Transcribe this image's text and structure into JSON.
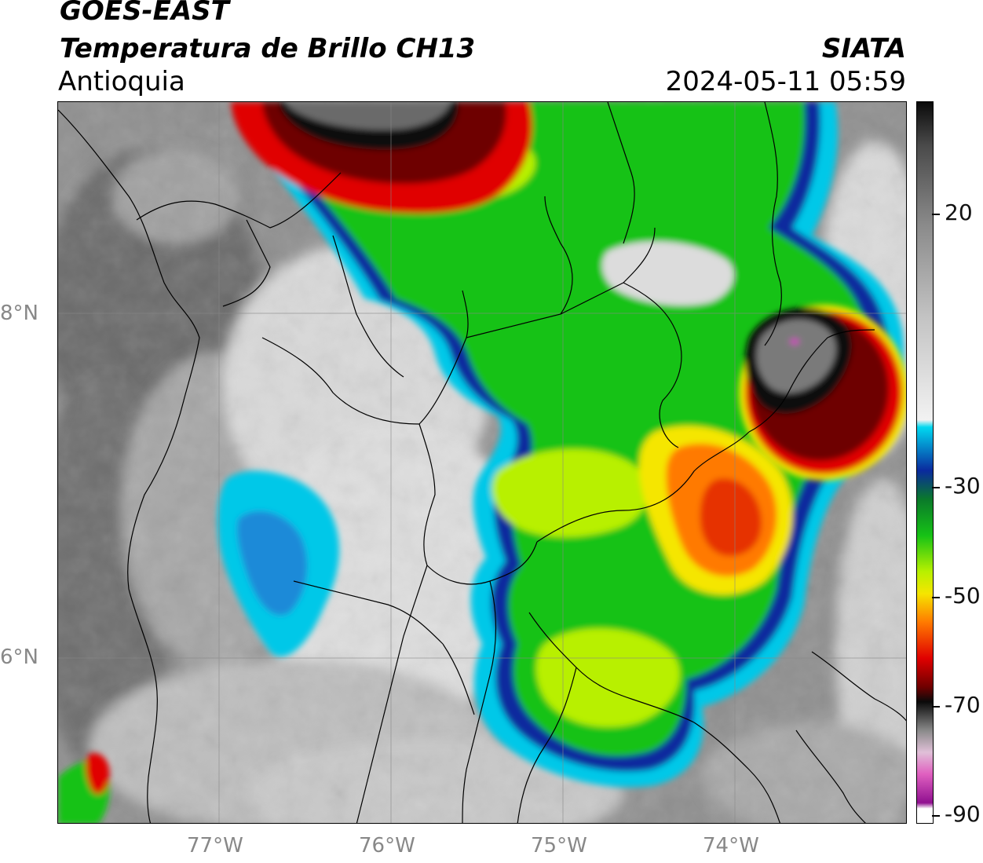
{
  "header": {
    "satellite": "GOES-EAST",
    "product": "Temperatura de Brillo CH13",
    "region": "Antioquia",
    "organization": "SIATA",
    "datetime": "2024-05-11 05:59"
  },
  "map": {
    "lat_ticks": [
      "8°N",
      "6°N"
    ],
    "lon_ticks": [
      "77°W",
      "76°W",
      "75°W",
      "74°W"
    ]
  },
  "colorbar": {
    "tick_labels": [
      "20",
      "-30",
      "-50",
      "-70",
      "-90"
    ],
    "colors": {
      "warm_gray": "#7a7a7a",
      "light_gray": "#e6e6e6",
      "cyan": "#00c8e8",
      "blue": "#0a2a9e",
      "green": "#16c216",
      "yellow_green": "#b8f000",
      "yellow": "#f5e600",
      "orange": "#ff7a00",
      "red": "#e00000",
      "dark_red": "#6e0000",
      "black": "#0a0a0a",
      "magenta": "#d040c0"
    }
  }
}
